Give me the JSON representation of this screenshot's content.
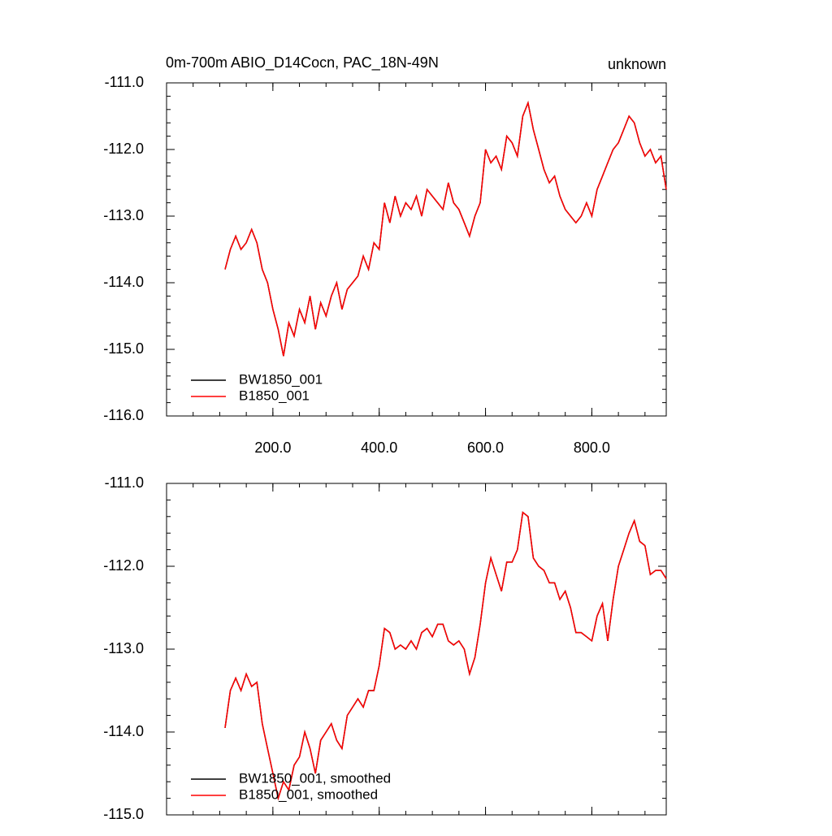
{
  "chart_data": [
    {
      "type": "line",
      "title": "0m-700m ABIO_D14Cocn, PAC_18N-49N",
      "subtitle": "unknown",
      "xlim": [
        0,
        940
      ],
      "xticks": [
        {
          "value": 200,
          "label": "200.0"
        },
        {
          "value": 400,
          "label": "400.0"
        },
        {
          "value": 600,
          "label": "600.0"
        },
        {
          "value": 800,
          "label": "800.0"
        }
      ],
      "ylim": [
        -116,
        -111
      ],
      "yticks": [
        {
          "value": -111,
          "label": "-111.0"
        },
        {
          "value": -112,
          "label": "-112.0"
        },
        {
          "value": -113,
          "label": "-113.0"
        },
        {
          "value": -114,
          "label": "-114.0"
        },
        {
          "value": -115,
          "label": "-115.0"
        },
        {
          "value": -116,
          "label": "-116.0"
        }
      ],
      "legend": "lower left",
      "x": [
        110,
        120,
        130,
        140,
        150,
        160,
        170,
        180,
        190,
        200,
        210,
        220,
        230,
        240,
        250,
        260,
        270,
        280,
        290,
        300,
        310,
        320,
        330,
        340,
        350,
        360,
        370,
        380,
        390,
        400,
        410,
        420,
        430,
        440,
        450,
        460,
        470,
        480,
        490,
        500,
        510,
        520,
        530,
        540,
        550,
        560,
        570,
        580,
        590,
        600,
        610,
        620,
        630,
        640,
        650,
        660,
        670,
        680,
        690,
        700,
        710,
        720,
        730,
        740,
        750,
        760,
        770,
        780,
        790,
        800,
        810,
        820,
        830,
        840,
        850,
        860,
        870,
        880,
        890,
        900,
        910,
        920,
        930,
        940
      ],
      "series": [
        {
          "name": "BW1850_001",
          "color": "#000000",
          "values": [
            -113.8,
            -113.5,
            -113.3,
            -113.5,
            -113.4,
            -113.2,
            -113.4,
            -113.8,
            -114.0,
            -114.4,
            -114.7,
            -115.1,
            -114.6,
            -114.8,
            -114.4,
            -114.6,
            -114.2,
            -114.7,
            -114.3,
            -114.5,
            -114.2,
            -114.0,
            -114.4,
            -114.1,
            -114.0,
            -113.9,
            -113.6,
            -113.8,
            -113.4,
            -113.5,
            -112.8,
            -113.1,
            -112.7,
            -113.0,
            -112.8,
            -112.9,
            -112.7,
            -113.0,
            -112.6,
            -112.7,
            -112.8,
            -112.9,
            -112.5,
            -112.8,
            -112.9,
            -113.1,
            -113.3,
            -113.0,
            -112.8,
            -112.0,
            -112.2,
            -112.1,
            -112.3,
            -111.8,
            -111.9,
            -112.1,
            -111.5,
            -111.3,
            -111.7,
            -112.0,
            -112.3,
            -112.5,
            -112.4,
            -112.7,
            -112.9,
            -113.0,
            -113.1,
            -113.0,
            -112.8,
            -113.0,
            -112.6,
            -112.4,
            -112.2,
            -112.0,
            -111.9,
            -111.7,
            -111.5,
            -111.6,
            -111.9,
            -112.1,
            -112.0,
            -112.2,
            -112.1,
            -112.6
          ]
        },
        {
          "name": "B1850_001",
          "color": "#ff0000",
          "values": [
            -113.8,
            -113.5,
            -113.3,
            -113.5,
            -113.4,
            -113.2,
            -113.4,
            -113.8,
            -114.0,
            -114.4,
            -114.7,
            -115.1,
            -114.6,
            -114.8,
            -114.4,
            -114.6,
            -114.2,
            -114.7,
            -114.3,
            -114.5,
            -114.2,
            -114.0,
            -114.4,
            -114.1,
            -114.0,
            -113.9,
            -113.6,
            -113.8,
            -113.4,
            -113.5,
            -112.8,
            -113.1,
            -112.7,
            -113.0,
            -112.8,
            -112.9,
            -112.7,
            -113.0,
            -112.6,
            -112.7,
            -112.8,
            -112.9,
            -112.5,
            -112.8,
            -112.9,
            -113.1,
            -113.3,
            -113.0,
            -112.8,
            -112.0,
            -112.2,
            -112.1,
            -112.3,
            -111.8,
            -111.9,
            -112.1,
            -111.5,
            -111.3,
            -111.7,
            -112.0,
            -112.3,
            -112.5,
            -112.4,
            -112.7,
            -112.9,
            -113.0,
            -113.1,
            -113.0,
            -112.8,
            -113.0,
            -112.6,
            -112.4,
            -112.2,
            -112.0,
            -111.9,
            -111.7,
            -111.5,
            -111.6,
            -111.9,
            -112.1,
            -112.0,
            -112.2,
            -112.1,
            -112.6
          ]
        }
      ]
    },
    {
      "type": "line",
      "xlim": [
        0,
        940
      ],
      "xticks": [
        200,
        400,
        600,
        800
      ],
      "ylim": [
        -115,
        -111
      ],
      "yticks": [
        {
          "value": -111,
          "label": "-111.0"
        },
        {
          "value": -112,
          "label": "-112.0"
        },
        {
          "value": -113,
          "label": "-113.0"
        },
        {
          "value": -114,
          "label": "-114.0"
        },
        {
          "value": -115,
          "label": "-115.0"
        }
      ],
      "legend": "lower left",
      "x": [
        110,
        120,
        130,
        140,
        150,
        160,
        170,
        180,
        190,
        200,
        210,
        220,
        230,
        240,
        250,
        260,
        270,
        280,
        290,
        300,
        310,
        320,
        330,
        340,
        350,
        360,
        370,
        380,
        390,
        400,
        410,
        420,
        430,
        440,
        450,
        460,
        470,
        480,
        490,
        500,
        510,
        520,
        530,
        540,
        550,
        560,
        570,
        580,
        590,
        600,
        610,
        620,
        630,
        640,
        650,
        660,
        670,
        680,
        690,
        700,
        710,
        720,
        730,
        740,
        750,
        760,
        770,
        780,
        790,
        800,
        810,
        820,
        830,
        840,
        850,
        860,
        870,
        880,
        890,
        900,
        910,
        920,
        930,
        940
      ],
      "series": [
        {
          "name": "BW1850_001, smoothed",
          "color": "#000000",
          "values": [
            -113.95,
            -113.5,
            -113.35,
            -113.5,
            -113.3,
            -113.45,
            -113.4,
            -113.9,
            -114.2,
            -114.5,
            -114.8,
            -114.6,
            -114.7,
            -114.4,
            -114.3,
            -114.0,
            -114.2,
            -114.5,
            -114.1,
            -114.0,
            -113.9,
            -114.1,
            -114.2,
            -113.8,
            -113.7,
            -113.6,
            -113.7,
            -113.5,
            -113.5,
            -113.2,
            -112.75,
            -112.8,
            -113.0,
            -112.95,
            -113.0,
            -112.9,
            -113.0,
            -112.8,
            -112.75,
            -112.85,
            -112.7,
            -112.7,
            -112.9,
            -112.95,
            -112.9,
            -113.0,
            -113.3,
            -113.1,
            -112.7,
            -112.2,
            -111.9,
            -112.1,
            -112.3,
            -111.95,
            -111.95,
            -111.8,
            -111.35,
            -111.4,
            -111.9,
            -112.0,
            -112.05,
            -112.2,
            -112.2,
            -112.4,
            -112.3,
            -112.5,
            -112.8,
            -112.8,
            -112.85,
            -112.9,
            -112.6,
            -112.45,
            -112.9,
            -112.4,
            -112.0,
            -111.8,
            -111.6,
            -111.45,
            -111.7,
            -111.75,
            -112.1,
            -112.05,
            -112.05,
            -112.15
          ]
        },
        {
          "name": "B1850_001, smoothed",
          "color": "#ff0000",
          "values": [
            -113.95,
            -113.5,
            -113.35,
            -113.5,
            -113.3,
            -113.45,
            -113.4,
            -113.9,
            -114.2,
            -114.5,
            -114.8,
            -114.6,
            -114.7,
            -114.4,
            -114.3,
            -114.0,
            -114.2,
            -114.5,
            -114.1,
            -114.0,
            -113.9,
            -114.1,
            -114.2,
            -113.8,
            -113.7,
            -113.6,
            -113.7,
            -113.5,
            -113.5,
            -113.2,
            -112.75,
            -112.8,
            -113.0,
            -112.95,
            -113.0,
            -112.9,
            -113.0,
            -112.8,
            -112.75,
            -112.85,
            -112.7,
            -112.7,
            -112.9,
            -112.95,
            -112.9,
            -113.0,
            -113.3,
            -113.1,
            -112.7,
            -112.2,
            -111.9,
            -112.1,
            -112.3,
            -111.95,
            -111.95,
            -111.8,
            -111.35,
            -111.4,
            -111.9,
            -112.0,
            -112.05,
            -112.2,
            -112.2,
            -112.4,
            -112.3,
            -112.5,
            -112.8,
            -112.8,
            -112.85,
            -112.9,
            -112.6,
            -112.45,
            -112.9,
            -112.4,
            -112.0,
            -111.8,
            -111.6,
            -111.45,
            -111.7,
            -111.75,
            -112.1,
            -112.05,
            -112.05,
            -112.15
          ]
        }
      ]
    }
  ]
}
